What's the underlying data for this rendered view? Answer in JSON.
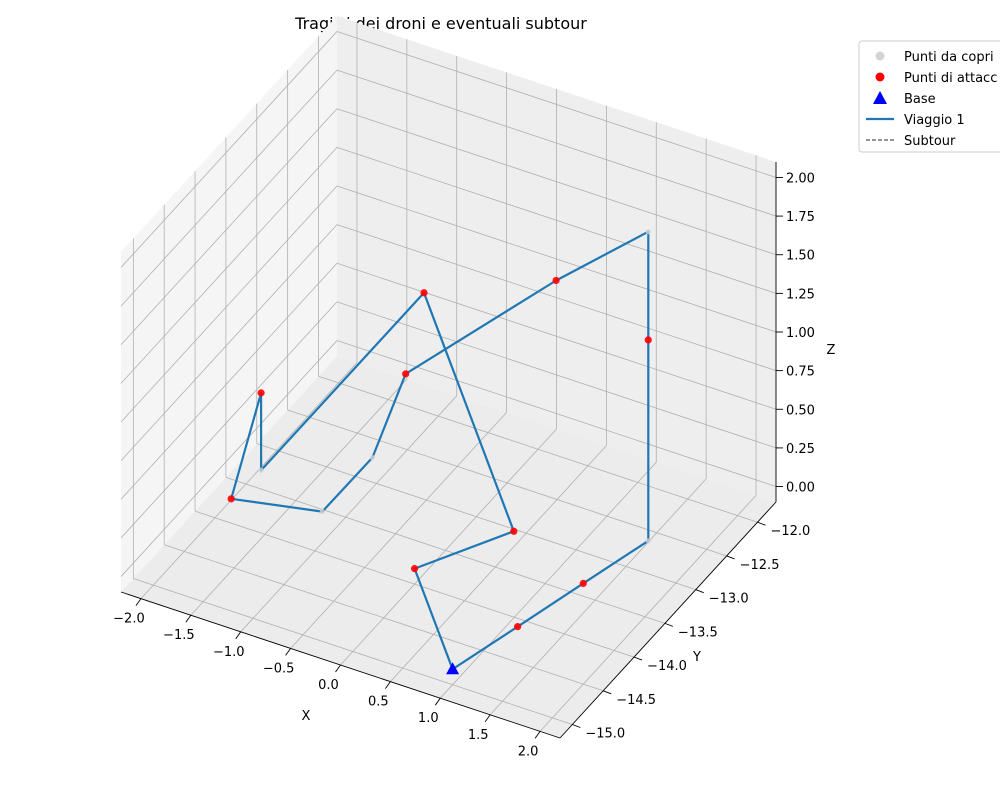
{
  "chart_data": {
    "type": "line",
    "projection": "3d",
    "title": "Tragitti dei droni e eventuali subtour",
    "xlabel": "X",
    "ylabel": "Y",
    "zlabel": "Z",
    "xlim": [
      -2.2,
      2.2
    ],
    "ylim": [
      -15.2,
      -11.7
    ],
    "zlim": [
      -0.1,
      2.1
    ],
    "x_ticks": [
      "−2.0",
      "−1.5",
      "−1.0",
      "−0.5",
      "0.0",
      "0.5",
      "1.0",
      "1.5",
      "2.0"
    ],
    "y_ticks": [
      "−15.0",
      "−14.5",
      "−14.0",
      "−13.5",
      "−13.0",
      "−12.5",
      "−12.0"
    ],
    "z_ticks": [
      "0.00",
      "0.25",
      "0.50",
      "0.75",
      "1.00",
      "1.25",
      "1.50",
      "1.75",
      "2.00"
    ],
    "grid": true,
    "legend_position": "upper-right-outside",
    "legend": [
      {
        "label": "Punti da copri",
        "marker": "circle",
        "color": "#d3d3d3"
      },
      {
        "label": "Punti di attacc",
        "marker": "circle",
        "color": "#ff0000"
      },
      {
        "label": "Base",
        "marker": "triangle",
        "color": "#0000ff"
      },
      {
        "label": "Viaggio 1",
        "marker": "line",
        "color": "#1f77b4"
      },
      {
        "label": "Subtour",
        "marker": "dashed-line",
        "color": "#555555"
      }
    ],
    "base": {
      "x": 1.0,
      "y": -15.0,
      "z": 0.0
    },
    "series": [
      {
        "name": "Viaggio 1",
        "color": "#1f77b4",
        "points": [
          {
            "x": 1.0,
            "y": -15.0,
            "z": 0.0
          },
          {
            "x": 1.2,
            "y": -14.27,
            "z": 0.0
          },
          {
            "x": 1.4,
            "y": -13.53,
            "z": 0.0
          },
          {
            "x": 1.6,
            "y": -12.8,
            "z": 0.0
          },
          {
            "x": 1.6,
            "y": -12.8,
            "z": 1.3
          },
          {
            "x": 1.6,
            "y": -12.8,
            "z": 2.0
          },
          {
            "x": 0.8,
            "y": -13.0,
            "z": 1.6
          },
          {
            "x": -0.46,
            "y": -13.4,
            "z": 0.9
          },
          {
            "x": -0.67,
            "y": -13.6,
            "z": 0.4
          },
          {
            "x": -1.11,
            "y": -13.7,
            "z": 0.0
          },
          {
            "x": -1.9,
            "y": -13.9,
            "z": 0.0
          },
          {
            "x": -1.6,
            "y": -13.9,
            "z": 0.75
          },
          {
            "x": -1.6,
            "y": -13.9,
            "z": 0.25
          },
          {
            "x": -0.4,
            "y": -13.2,
            "z": 1.35
          },
          {
            "x": 0.5,
            "y": -13.2,
            "z": 0.0
          },
          {
            "x": 0.0,
            "y": -14.0,
            "z": 0.0
          },
          {
            "x": 1.0,
            "y": -15.0,
            "z": 0.0
          }
        ]
      }
    ],
    "subtours": []
  }
}
